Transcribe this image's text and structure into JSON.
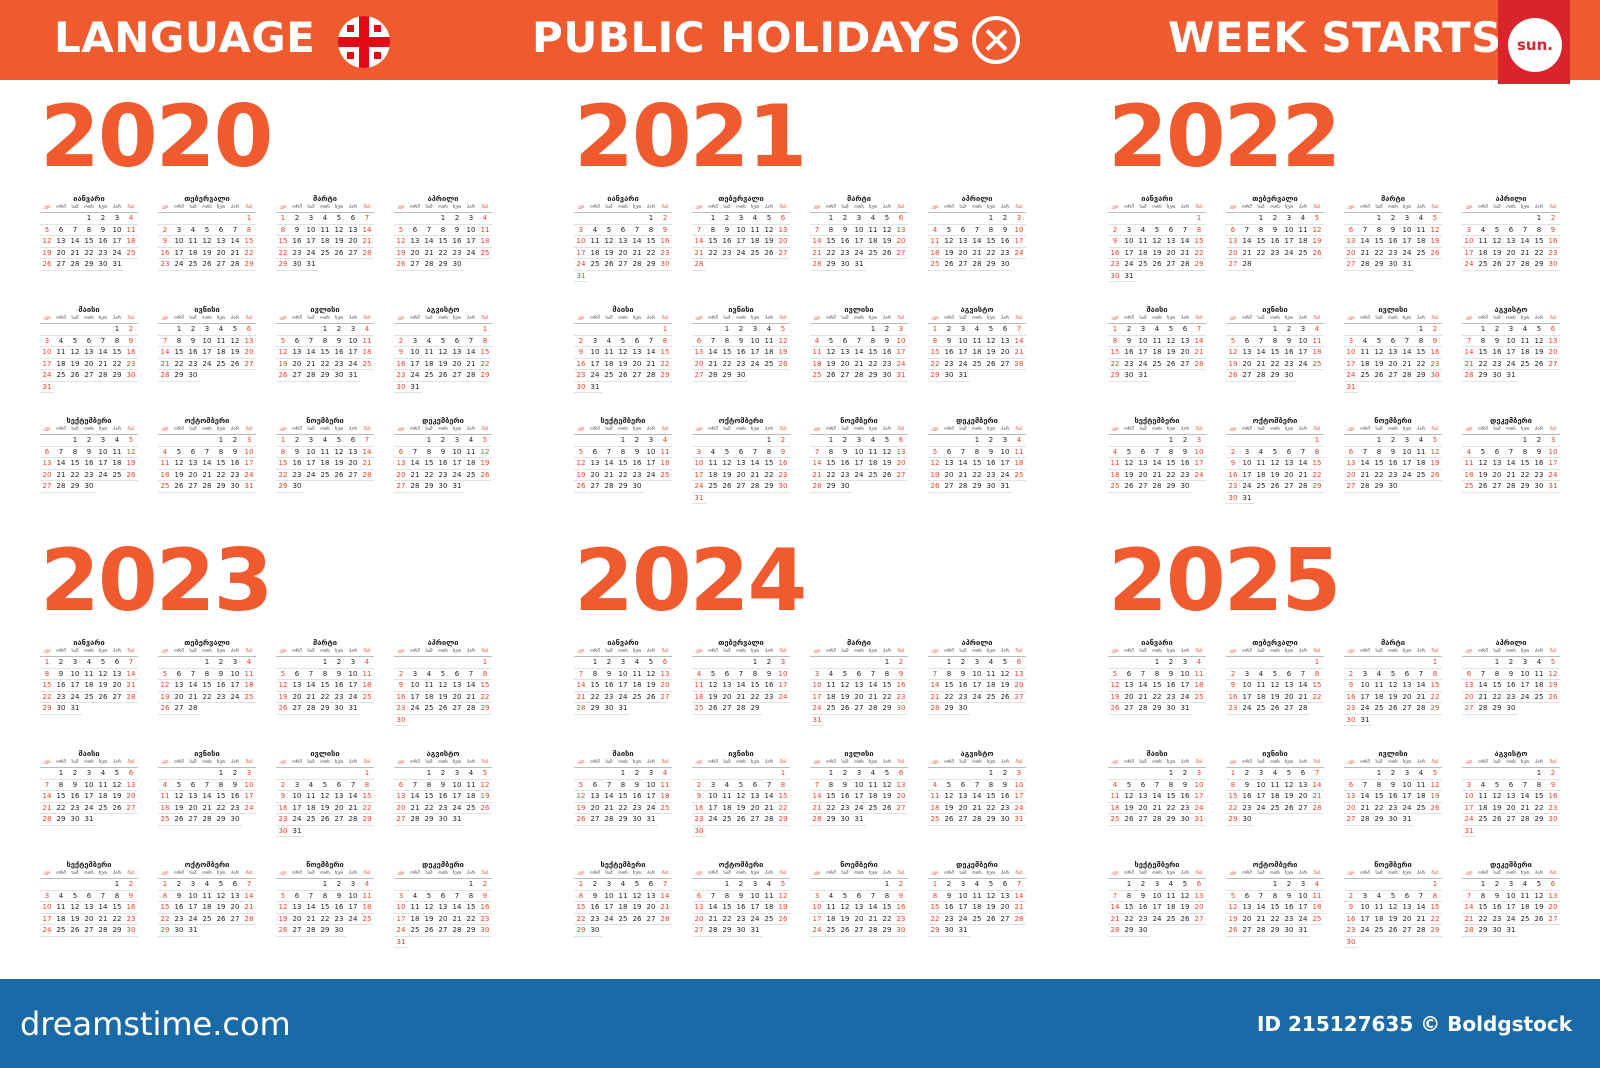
{
  "header": {
    "language_label": "LANGUAGE",
    "holidays_label": "PUBLIC HOLIDAYS",
    "week_starts_label": "WEEK STARTS",
    "week_start_badge": "sun."
  },
  "month_names": [
    "იანვარი",
    "თებერვალი",
    "მარტი",
    "აპრილი",
    "მაისი",
    "ივნისი",
    "ივლისი",
    "აგვისტო",
    "სექტემბერი",
    "ოქტომბერი",
    "ნოემბერი",
    "დეკემბერი"
  ],
  "weekday_labels": [
    "კვი",
    "ორშ",
    "სამ",
    "ოთხ",
    "ხუთ",
    "პარ",
    "შაბ"
  ],
  "years": [
    2020,
    2021,
    2022,
    2023,
    2024,
    2025
  ],
  "colors": {
    "accent": "#f05a2f",
    "weekend": "#e8412a",
    "footer": "#1b6aa8",
    "badge": "#d8242a"
  },
  "icons": {
    "flag": "georgia-flag-icon",
    "holidays": "x-circle-icon"
  },
  "footer": {
    "site": "dreamstime.com",
    "id_text": "ID 215127635 © Boldgstock"
  }
}
